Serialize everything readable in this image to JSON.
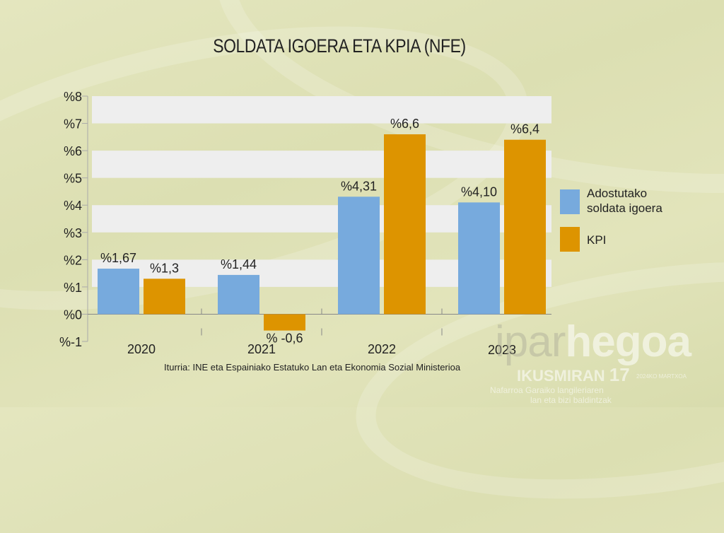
{
  "chart_data": {
    "type": "bar",
    "title": "SOLDATA IGOERA ETA KPIA (NFE)",
    "categories": [
      "2020",
      "2021",
      "2022",
      "2023"
    ],
    "series": [
      {
        "name": "Adostutako soldata igoera",
        "values": [
          1.67,
          1.44,
          4.31,
          4.1
        ],
        "labels": [
          "%1,67",
          "%1,44",
          "%4,31",
          "%4,10"
        ],
        "color": "#77aadd"
      },
      {
        "name": "KPI",
        "values": [
          1.3,
          -0.6,
          6.6,
          6.4
        ],
        "labels": [
          "%1,3",
          "% -0,6",
          "%6,6",
          "%6,4"
        ],
        "color": "#dd9400"
      }
    ],
    "yticks": [
      "%-1",
      "%0",
      "%1",
      "%2",
      "%3",
      "%4",
      "%5",
      "%6",
      "%7",
      "%8"
    ],
    "ylim": [
      -1,
      8
    ],
    "xlabel": "",
    "ylabel": "",
    "legend_position": "right",
    "legend": [
      "Adostutako",
      "soldata igoera",
      "KPI"
    ]
  },
  "source": "Iturria: INE eta Espainiako Estatuko Lan eta Ekonomia Sozial Ministerioa",
  "watermark": {
    "brand_light": "ipar",
    "brand_bold": "hegoa",
    "series": "IKUSMIRAN",
    "number": "17",
    "date": "2024KO MARTXOA",
    "line1": "Nafarroa Garaiko langileriaren",
    "line2": "lan eta bizi baldintzak"
  }
}
